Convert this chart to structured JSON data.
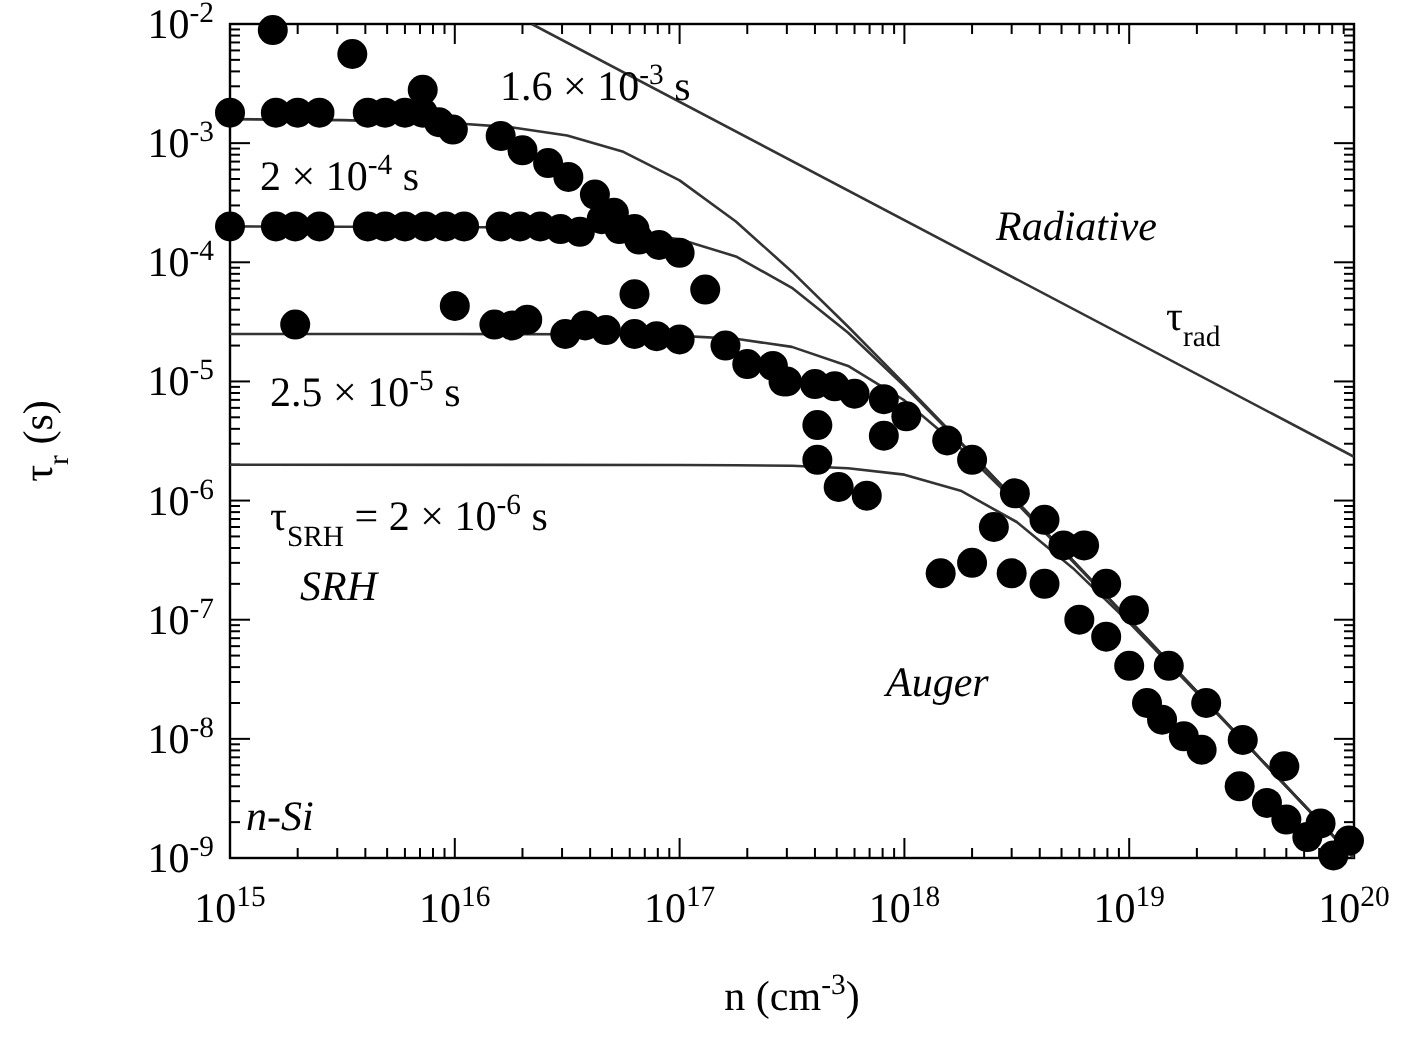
{
  "chart_data": {
    "type": "scatter",
    "xlabel": "n (cm$^{-3}$)",
    "ylabel": "τ$_{r}$ (s)",
    "log": "xy",
    "xlim": [
      1000000000000000.0,
      1e+20
    ],
    "ylim": [
      1e-09,
      0.01
    ],
    "xticks": [
      {
        "value": 1000000000000000.0,
        "label": "10$^{15}$"
      },
      {
        "value": 1e+16,
        "label": "10$^{16}$"
      },
      {
        "value": 1e+17,
        "label": "10$^{17}$"
      },
      {
        "value": 1e+18,
        "label": "10$^{18}$"
      },
      {
        "value": 1e+19,
        "label": "10$^{19}$"
      },
      {
        "value": 1e+20,
        "label": "10$^{20}$"
      }
    ],
    "yticks": [
      {
        "value": 1e-09,
        "label": "10$^{-9}$"
      },
      {
        "value": 1e-08,
        "label": "10$^{-8}$"
      },
      {
        "value": 1e-07,
        "label": "10$^{-7}$"
      },
      {
        "value": 1e-06,
        "label": "10$^{-6}$"
      },
      {
        "value": 1e-05,
        "label": "10$^{-5}$"
      },
      {
        "value": 0.0001,
        "label": "10$^{-4}$"
      },
      {
        "value": 0.001,
        "label": "10$^{-3}$"
      },
      {
        "value": 0.01,
        "label": "10$^{-2}$"
      }
    ],
    "series": [
      {
        "marker": "circle",
        "color": "#000000",
        "x": [
          1550000000000000.0,
          3500000000000000.0,
          1000000000000000.0,
          1600000000000000.0,
          2000000000000000.0,
          2500000000000000.0,
          4100000000000000.0,
          4900000000000000.0,
          6000000000000000.0,
          7200000000000000.0,
          8500000000000000.0,
          9800000000000000.0,
          7200000000000000.0,
          1.6e+16,
          2e+16,
          2.6e+16,
          3.2e+16,
          4.2e+16,
          5.1e+16,
          6.3e+16,
          1000000000000000.0,
          1600000000000000.0,
          1950000000000000.0,
          2500000000000000.0,
          4100000000000000.0,
          4900000000000000.0,
          6000000000000000.0,
          7400000000000000.0,
          9100000000000000.0,
          1.1e+16,
          1.6e+16,
          1.95e+16,
          2.4e+16,
          2.95e+16,
          3.6e+16,
          4.5e+16,
          5.4e+16,
          6.6e+16,
          8.1e+16,
          1e+17,
          1.3e+17,
          6.3e+16,
          1950000000000000.0,
          1e+16,
          1.5e+16,
          1.8e+16,
          2.1e+16,
          3.1e+16,
          3.8e+16,
          4.7e+16,
          6.3e+16,
          7.9e+16,
          1e+17,
          1.6e+17,
          2e+17,
          3e+17,
          2.6e+17,
          2.9e+17,
          4e+17,
          4.9e+17,
          6e+17,
          8.1e+17,
          1.02e+18,
          4.1e+17,
          8.1e+17,
          1.55e+18,
          2e+18,
          4.1e+17,
          5.1e+17,
          6.8e+17,
          3.1e+18,
          4.2e+18,
          5.1e+18,
          6.3e+18,
          2.5e+18,
          1.45e+18,
          2e+18,
          3e+18,
          4.2e+18,
          6e+18,
          7.9e+18,
          7.9e+18,
          1.05e+19,
          1e+19,
          1.5e+19,
          1.2e+19,
          1.4e+19,
          1.75e+19,
          2.1e+19,
          2.2e+19,
          3.2e+19,
          3.1e+19,
          4.1e+19,
          4.9e+19,
          5e+19,
          6.2e+19,
          7.1e+19,
          8.1e+19,
          9.5e+19
        ],
        "values": [
          0.0089,
          0.0056,
          0.0018,
          0.0018,
          0.0018,
          0.0018,
          0.0018,
          0.0018,
          0.0018,
          0.0018,
          0.0015,
          0.0013,
          0.0028,
          0.00115,
          0.00087,
          0.00068,
          0.00052,
          0.00037,
          0.00026,
          0.00019,
          0.0002,
          0.0002,
          0.0002,
          0.0002,
          0.0002,
          0.0002,
          0.0002,
          0.0002,
          0.0002,
          0.0002,
          0.0002,
          0.0002,
          0.0002,
          0.00019,
          0.00018,
          0.00023,
          0.00019,
          0.000155,
          0.00014,
          0.00012,
          5.9e-05,
          5.4e-05,
          3e-05,
          4.3e-05,
          3e-05,
          2.95e-05,
          3.3e-05,
          2.5e-05,
          2.95e-05,
          2.7e-05,
          2.5e-05,
          2.4e-05,
          2.25e-05,
          2e-05,
          1.4e-05,
          1e-05,
          1.35e-05,
          1e-05,
          9.5e-06,
          9.1e-06,
          7.9e-06,
          7.1e-06,
          5.1e-06,
          4.3e-06,
          3.5e-06,
          3.2e-06,
          2.2e-06,
          2.2e-06,
          1.3e-06,
          1.1e-06,
          1.15e-06,
          6.9e-07,
          4.2e-07,
          4.2e-07,
          6e-07,
          2.45e-07,
          3e-07,
          2.45e-07,
          2e-07,
          1e-07,
          2e-07,
          7.2e-08,
          1.2e-07,
          4.1e-08,
          4.1e-08,
          2e-08,
          1.45e-08,
          1.05e-08,
          8.1e-09,
          2e-08,
          9.8e-09,
          4e-09,
          2.9e-09,
          5.9e-09,
          2.1e-09,
          1.5e-09,
          1.95e-09,
          1.05e-09,
          1.4e-09
        ]
      },
      {
        "type": "line",
        "color": "#333333",
        "x": [
          1000000000000000.0,
          3160000000000000.0,
          1e+16,
          1.78e+16,
          3.16e+16,
          5.62e+16,
          1e+17,
          1.78e+17,
          3.16e+17,
          5.62e+17,
          1e+18,
          1.78e+18,
          3.16e+18,
          1e+19,
          3.16e+19,
          1e+20
        ],
        "values": [
          0.00159,
          0.00156,
          0.00147,
          0.00136,
          0.00116,
          0.000845,
          0.000487,
          0.00022,
          8.34e-05,
          2.88e-05,
          9.53e-06,
          3.09e-06,
          9.86e-07,
          9.96e-08,
          9.99e-09,
          1e-09
        ]
      },
      {
        "type": "line",
        "color": "#333333",
        "x": [
          1000000000000000.0,
          3160000000000000.0,
          1e+16,
          1.78e+16,
          3.16e+16,
          5.62e+16,
          1e+17,
          1.78e+17,
          3.16e+17,
          5.62e+17,
          1e+18,
          1.78e+18,
          3.16e+18,
          1e+19,
          3.16e+19,
          1e+20
        ],
        "values": [
          0.0002,
          0.000199,
          0.000198,
          0.000196,
          0.000191,
          0.00018,
          0.000156,
          0.000112,
          6.11e-05,
          2.56e-05,
          9.15e-06,
          3.04e-06,
          9.82e-07,
          9.96e-08,
          9.99e-09,
          1e-09
        ]
      },
      {
        "type": "line",
        "color": "#333333",
        "x": [
          1000000000000000.0,
          1e+16,
          3.16e+16,
          1e+17,
          1.78e+17,
          3.16e+17,
          5.62e+17,
          1e+18,
          1.78e+18,
          3.16e+18,
          1e+19,
          3.16e+19,
          1e+20
        ],
        "values": [
          2.5e-05,
          2.5e-05,
          2.49e-05,
          2.41e-05,
          2.28e-05,
          1.95e-05,
          1.35e-05,
          6.93e-06,
          2.75e-06,
          9.49e-07,
          9.92e-08,
          9.98e-09,
          1e-09
        ]
      },
      {
        "type": "line",
        "color": "#333333",
        "x": [
          1000000000000000.0,
          1e+17,
          1.78e+17,
          3.16e+17,
          5.62e+17,
          1e+18,
          1.78e+18,
          3.16e+18,
          5.62e+18,
          1e+19,
          3.16e+19,
          1e+20
        ],
        "values": [
          2e-06,
          1.99e-06,
          1.98e-06,
          1.96e-06,
          1.87e-06,
          1.65e-06,
          1.21e-06,
          6.61e-07,
          2.71e-07,
          9.48e-08,
          9.94e-09,
          1e-09
        ]
      },
      {
        "type": "line",
        "color": "#333333",
        "x": [
          2.2e+16,
          1e+20
        ],
        "values": [
          0.01,
          2.33e-06
        ]
      }
    ],
    "annotations": [
      "1.6 × 10$^{-3}$ s",
      "2 × 10$^{-4}$ s",
      "2.5 × 10$^{-5}$ s",
      "τ$_{SRH}$ = 2 × 10$^{-6}$ s",
      "SRH",
      "Radiative",
      "τ$_{rad}$",
      "Auger",
      "n-Si"
    ]
  }
}
